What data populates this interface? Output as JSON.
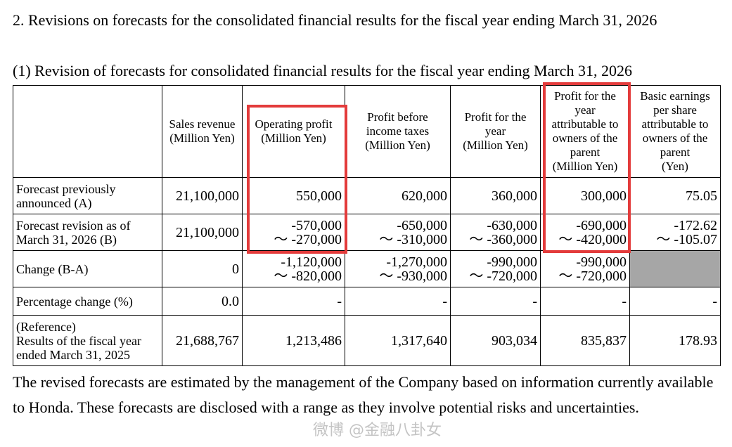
{
  "heading": "2.   Revisions on forecasts for the consolidated financial results for the fiscal year ending March 31, 2026",
  "subheading": "(1) Revision of forecasts for consolidated financial results for the fiscal year ending March 31, 2026",
  "table": {
    "headers": [
      "",
      "Sales revenue\n(Million Yen)",
      "Operating profit\n(Million Yen)",
      "Profit before\nincome taxes\n(Million Yen)",
      "Profit for the\nyear\n(Million Yen)",
      "Profit for the\nyear\nattributable to\nowners of the\nparent\n(Million Yen)",
      "Basic earnings\nper share\nattributable to\nowners of the\nparent\n(Yen)"
    ],
    "rows": [
      {
        "label": "Forecast previously\nannounced (A)",
        "cells": [
          "21,100,000",
          "550,000",
          "620,000",
          "360,000",
          "300,000",
          "75.05"
        ]
      },
      {
        "label": "Forecast revision as of\nMarch 31, 2026 (B)",
        "cells": [
          "21,100,000",
          "-570,000\n～ -270,000",
          "-650,000\n～ -310,000",
          "-630,000\n～ -360,000",
          "-690,000\n～ -420,000",
          "-172.62\n～ -105.07"
        ]
      },
      {
        "label": "Change (B-A)",
        "cells": [
          "0",
          "-1,120,000\n～ -820,000",
          "-1,270,000\n～ -930,000",
          "-990,000\n～ -720,000",
          "-990,000\n～ -720,000",
          ""
        ]
      },
      {
        "label": "Percentage change (%)",
        "cells": [
          "0.0",
          "-",
          "-",
          "-",
          "-",
          "-"
        ]
      },
      {
        "label": "(Reference)\nResults of the fiscal year\nended March 31, 2025",
        "cells": [
          "21,688,767",
          "1,213,486",
          "1,317,640",
          "903,034",
          "835,837",
          "178.93"
        ]
      }
    ]
  },
  "note": "The revised forecasts are estimated by the management of the Company based on information currently available to Honda. These forecasts are disclosed with a range as they involve potential risks and uncertainties.",
  "watermark": "微博 @金融八卦女",
  "colors": {
    "highlight_box": "#e33b3b",
    "shaded_cell": "#a6a6a6"
  }
}
